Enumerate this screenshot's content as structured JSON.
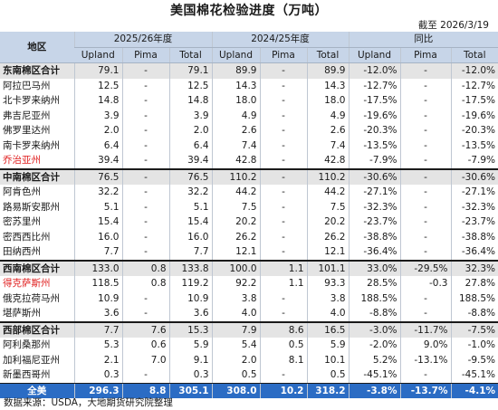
{
  "title": "美国棉花检验进度（万吨）",
  "as_of": "截至  2026/3/19",
  "source": "数据来源：USDA，大地期货研究院整理",
  "chart_data": {
    "type": "table",
    "header_groups": [
      "地区",
      "2025/26年度",
      "2024/25年度",
      "同比"
    ],
    "sub_headers": [
      "Upland",
      "Pima",
      "Total",
      "Upland",
      "Pima",
      "Total",
      "Upland",
      "Pima",
      "Total"
    ],
    "rows": [
      {
        "name": "东南棉区合计",
        "values": [
          "79.1",
          "-",
          "79.1",
          "89.9",
          "-",
          "89.9",
          "-12.0%",
          "-",
          "-12.0%"
        ],
        "kind": "subtotal"
      },
      {
        "name": "阿拉巴马州",
        "values": [
          "12.5",
          "-",
          "12.5",
          "14.3",
          "-",
          "14.3",
          "-12.7%",
          "-",
          "-12.7%"
        ],
        "kind": "state"
      },
      {
        "name": "北卡罗来纳州",
        "values": [
          "14.8",
          "-",
          "14.8",
          "18.0",
          "-",
          "18.0",
          "-17.5%",
          "-",
          "-17.5%"
        ],
        "kind": "state"
      },
      {
        "name": "弗吉尼亚州",
        "values": [
          "3.9",
          "-",
          "3.9",
          "4.9",
          "-",
          "4.9",
          "-19.6%",
          "-",
          "-19.6%"
        ],
        "kind": "state"
      },
      {
        "name": "佛罗里达州",
        "values": [
          "2.0",
          "-",
          "2.0",
          "2.6",
          "-",
          "2.6",
          "-20.3%",
          "-",
          "-20.3%"
        ],
        "kind": "state"
      },
      {
        "name": "南卡罗来纳州",
        "values": [
          "6.4",
          "-",
          "6.4",
          "7.4",
          "-",
          "7.4",
          "-13.5%",
          "-",
          "-13.5%"
        ],
        "kind": "state"
      },
      {
        "name": "乔治亚州",
        "values": [
          "39.4",
          "-",
          "39.4",
          "42.8",
          "-",
          "42.8",
          "-7.9%",
          "-",
          "-7.9%"
        ],
        "kind": "red"
      },
      {
        "name": "中南棉区合计",
        "values": [
          "76.5",
          "-",
          "76.5",
          "110.2",
          "-",
          "110.2",
          "-30.6%",
          "-",
          "-30.6%"
        ],
        "kind": "subtotal"
      },
      {
        "name": "阿肯色州",
        "values": [
          "32.2",
          "-",
          "32.2",
          "44.2",
          "-",
          "44.2",
          "-27.1%",
          "-",
          "-27.1%"
        ],
        "kind": "state"
      },
      {
        "name": "路易斯安那州",
        "values": [
          "5.1",
          "-",
          "5.1",
          "7.5",
          "-",
          "7.5",
          "-32.3%",
          "-",
          "-32.3%"
        ],
        "kind": "state"
      },
      {
        "name": "密苏里州",
        "values": [
          "15.4",
          "-",
          "15.4",
          "20.2",
          "-",
          "20.2",
          "-23.7%",
          "-",
          "-23.7%"
        ],
        "kind": "state"
      },
      {
        "name": "密西西比州",
        "values": [
          "16.0",
          "-",
          "16.0",
          "26.2",
          "-",
          "26.2",
          "-38.8%",
          "-",
          "-38.8%"
        ],
        "kind": "state"
      },
      {
        "name": "田纳西州",
        "values": [
          "7.7",
          "-",
          "7.7",
          "12.1",
          "-",
          "12.1",
          "-36.4%",
          "-",
          "-36.4%"
        ],
        "kind": "state"
      },
      {
        "name": "西南棉区合计",
        "values": [
          "133.0",
          "0.8",
          "133.8",
          "100.0",
          "1.1",
          "101.1",
          "33.0%",
          "-29.5%",
          "32.3%"
        ],
        "kind": "subtotal"
      },
      {
        "name": "得克萨斯州",
        "values": [
          "118.5",
          "0.8",
          "119.2",
          "92.2",
          "1.1",
          "93.3",
          "28.5%",
          "-0.3",
          "27.8%"
        ],
        "kind": "red"
      },
      {
        "name": "俄克拉荷马州",
        "values": [
          "10.9",
          "-",
          "10.9",
          "3.8",
          "-",
          "3.8",
          "188.5%",
          "-",
          "188.5%"
        ],
        "kind": "state"
      },
      {
        "name": "堪萨斯州",
        "values": [
          "3.6",
          "-",
          "3.6",
          "4.0",
          "-",
          "4.0",
          "-8.8%",
          "-",
          "-8.8%"
        ],
        "kind": "state"
      },
      {
        "name": "西部棉区合计",
        "values": [
          "7.7",
          "7.6",
          "15.3",
          "7.9",
          "8.6",
          "16.5",
          "-3.0%",
          "-11.7%",
          "-7.5%"
        ],
        "kind": "subtotal"
      },
      {
        "name": "阿利桑那州",
        "values": [
          "5.3",
          "0.6",
          "5.9",
          "5.4",
          "0.5",
          "5.9",
          "-2.0%",
          "9.0%",
          "-1.0%"
        ],
        "kind": "state"
      },
      {
        "name": "加利福尼亚州",
        "values": [
          "2.1",
          "7.0",
          "9.1",
          "2.0",
          "8.1",
          "10.1",
          "5.2%",
          "-13.1%",
          "-9.5%"
        ],
        "kind": "state"
      },
      {
        "name": "新墨西哥州",
        "values": [
          "0.3",
          "-",
          "0.3",
          "0.5",
          "-",
          "0.5",
          "-45.1%",
          "-",
          "-45.1%"
        ],
        "kind": "last"
      },
      {
        "name": "全美",
        "values": [
          "296.3",
          "8.8",
          "305.1",
          "308.0",
          "10.2",
          "318.2",
          "-3.8%",
          "-13.7%",
          "-4.1%"
        ],
        "kind": "total"
      }
    ]
  }
}
